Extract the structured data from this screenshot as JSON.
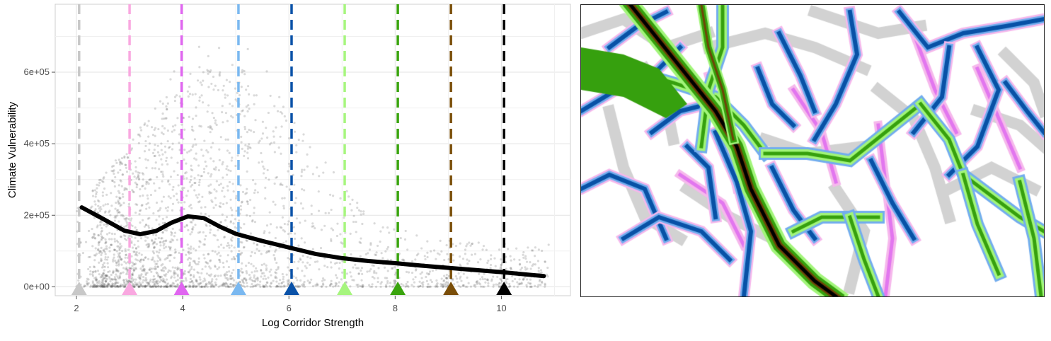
{
  "chart_data": {
    "type": "scatter",
    "xlabel": "Log Corridor Strength",
    "ylabel": "Climate Vulnerability",
    "xlim": [
      1.6,
      11.3
    ],
    "ylim": [
      -25000,
      790000
    ],
    "x_ticks": [
      {
        "value": 2,
        "label": "2"
      },
      {
        "value": 4,
        "label": "4"
      },
      {
        "value": 6,
        "label": "6"
      },
      {
        "value": 8,
        "label": "8"
      },
      {
        "value": 10,
        "label": "10"
      }
    ],
    "y_ticks": [
      {
        "value": 0,
        "label": "0e+00"
      },
      {
        "value": 200000,
        "label": "2e+05"
      },
      {
        "value": 400000,
        "label": "4e+05"
      },
      {
        "value": 600000,
        "label": "6e+05"
      }
    ],
    "grid": true,
    "background": "#ffffff",
    "point_color": "#555555",
    "smooth_line": {
      "color": "#000000",
      "x": [
        2.1,
        2.5,
        2.9,
        3.2,
        3.5,
        3.8,
        4.1,
        4.4,
        4.7,
        5.0,
        5.5,
        6.0,
        6.5,
        7.0,
        7.5,
        8.0,
        8.5,
        9.0,
        9.5,
        10.0,
        10.5,
        10.8
      ],
      "y": [
        222000,
        190000,
        157000,
        147000,
        156000,
        180000,
        197000,
        192000,
        168000,
        148000,
        128000,
        110000,
        92000,
        80000,
        72000,
        66000,
        59000,
        53000,
        47000,
        41000,
        34000,
        30000
      ]
    },
    "breakpoints": [
      {
        "x": 2.05,
        "color": "#c8c8c8"
      },
      {
        "x": 3.0,
        "color": "#f9a8e0"
      },
      {
        "x": 3.98,
        "color": "#e066f0"
      },
      {
        "x": 5.05,
        "color": "#7ab8f0"
      },
      {
        "x": 6.05,
        "color": "#0a52a8"
      },
      {
        "x": 7.05,
        "color": "#a6f57e"
      },
      {
        "x": 8.05,
        "color": "#3aa40e"
      },
      {
        "x": 9.05,
        "color": "#7a4e08"
      },
      {
        "x": 10.05,
        "color": "#000000"
      }
    ]
  },
  "map": {
    "class_colors": {
      "bg": "#ffffff",
      "gray": "#d2d2d2",
      "pink": "#f6b8ec",
      "magenta": "#e276ef",
      "lightblue": "#72adee",
      "darkblue": "#0851a6",
      "lightgreen": "#a2f57a",
      "green": "#36a00e",
      "brown": "#6e4507",
      "black": "#000000"
    }
  }
}
